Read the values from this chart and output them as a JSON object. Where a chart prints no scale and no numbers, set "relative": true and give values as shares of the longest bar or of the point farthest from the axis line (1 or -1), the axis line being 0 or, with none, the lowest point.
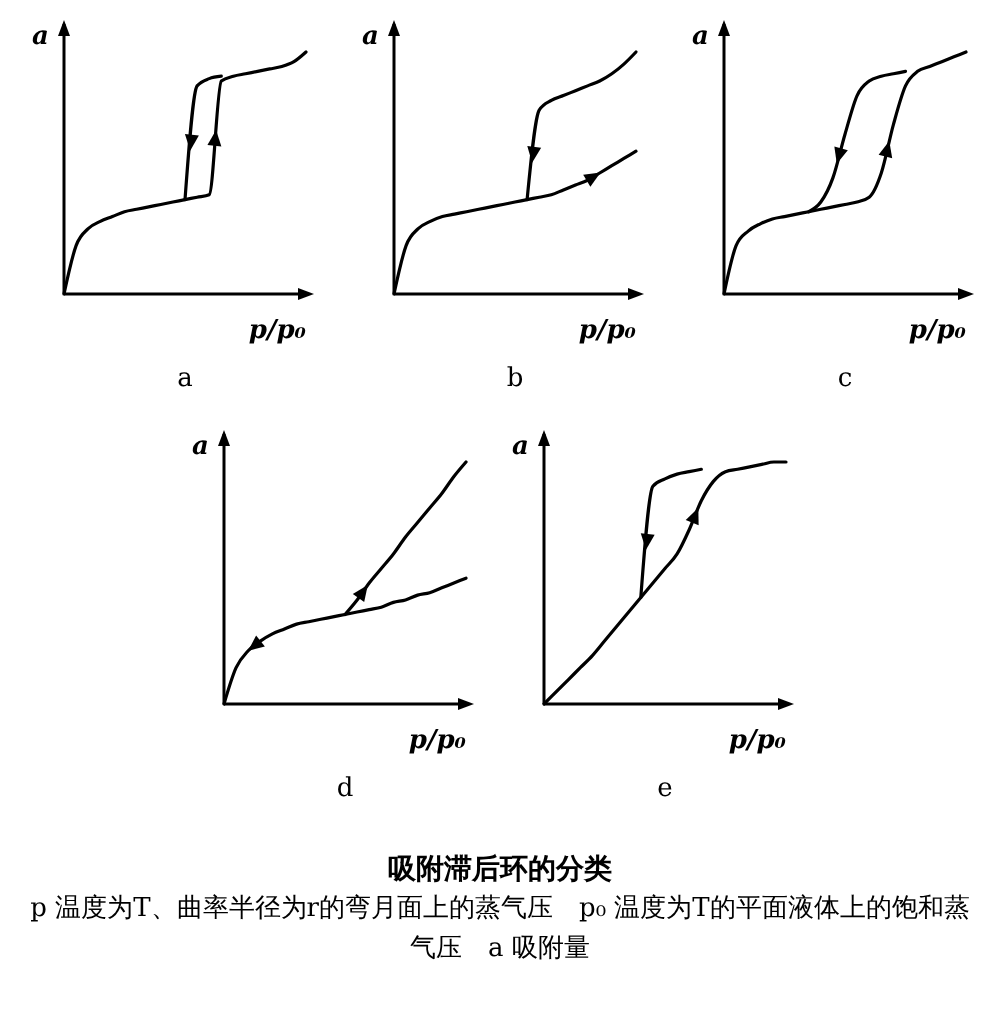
{
  "chart_data": [
    {
      "type": "line",
      "title": "a",
      "xlabel": "p/p₀",
      "ylabel": "a",
      "relative": true,
      "categories": [
        null,
        null,
        null,
        null,
        null,
        null,
        null,
        null,
        null,
        null,
        null,
        null,
        null,
        null,
        null,
        null,
        null,
        null,
        null,
        null,
        null
      ],
      "series": [
        {
          "color": "#000000",
          "values": [
            0,
            0.2,
            0.27,
            0.3,
            0.32,
            0.34,
            0.35,
            0.36,
            0.37,
            0.38,
            0.39,
            0.4,
            0.41,
            0.88,
            0.9,
            0.91,
            0.92,
            0.93,
            0.94,
            0.96,
            1
          ]
        },
        {
          "color": "#000000",
          "values": [
            null,
            null,
            null,
            null,
            null,
            null,
            null,
            null,
            null,
            null,
            0.39,
            0.86,
            0.89,
            0.9,
            null,
            null,
            null,
            null,
            null,
            null,
            null
          ]
        }
      ]
    },
    {
      "type": "line",
      "title": "b",
      "xlabel": "p/p₀",
      "ylabel": "a",
      "relative": true,
      "categories": [
        null,
        null,
        null,
        null,
        null,
        null,
        null,
        null,
        null,
        null,
        null,
        null,
        null,
        null,
        null,
        null,
        null,
        null,
        null,
        null,
        null
      ],
      "series": [
        {
          "color": "#000000",
          "values": [
            0,
            0.2,
            0.27,
            0.3,
            0.32,
            0.33,
            0.34,
            0.35,
            0.36,
            0.37,
            0.38,
            0.39,
            0.4,
            0.41,
            0.43,
            0.45,
            0.47,
            0.5,
            0.53,
            0.56,
            0.59
          ]
        },
        {
          "color": "#000000",
          "values": [
            null,
            null,
            null,
            null,
            null,
            null,
            null,
            null,
            null,
            null,
            null,
            0.39,
            0.76,
            0.8,
            0.82,
            0.84,
            0.86,
            0.88,
            0.91,
            0.95,
            1
          ]
        }
      ]
    },
    {
      "type": "line",
      "title": "c",
      "xlabel": "p/p₀",
      "ylabel": "a",
      "relative": true,
      "categories": [
        null,
        null,
        null,
        null,
        null,
        null,
        null,
        null,
        null,
        null,
        null,
        null,
        null,
        null,
        null,
        null,
        null,
        null,
        null,
        null,
        null
      ],
      "series": [
        {
          "color": "#000000",
          "values": [
            0,
            0.2,
            0.26,
            0.29,
            0.31,
            0.32,
            0.33,
            0.34,
            0.35,
            0.36,
            0.37,
            0.38,
            0.4,
            0.5,
            0.7,
            0.86,
            0.92,
            0.94,
            0.96,
            0.98,
            1
          ]
        },
        {
          "color": "#000000",
          "values": [
            null,
            null,
            null,
            null,
            null,
            null,
            null,
            0.34,
            0.38,
            0.48,
            0.66,
            0.82,
            0.88,
            0.9,
            0.91,
            0.92,
            null,
            null,
            null,
            null,
            null
          ]
        }
      ]
    },
    {
      "type": "line",
      "title": "d",
      "xlabel": "p/p₀",
      "ylabel": "a",
      "relative": true,
      "categories": [
        null,
        null,
        null,
        null,
        null,
        null,
        null,
        null,
        null,
        null,
        null,
        null,
        null,
        null,
        null,
        null,
        null,
        null,
        null,
        null,
        null
      ],
      "series": [
        {
          "color": "#000000",
          "values": [
            null,
            null,
            null,
            null,
            null,
            null,
            null,
            null,
            null,
            null,
            0.37,
            0.43,
            0.5,
            0.56,
            0.62,
            0.69,
            0.75,
            0.81,
            0.87,
            0.94,
            1
          ]
        },
        {
          "color": "#000000",
          "values": [
            0,
            0.15,
            0.22,
            0.26,
            0.29,
            0.31,
            0.33,
            0.34,
            0.35,
            0.36,
            0.37,
            0.38,
            0.39,
            0.4,
            0.42,
            0.43,
            0.45,
            0.46,
            0.48,
            0.5,
            0.52
          ]
        }
      ]
    },
    {
      "type": "line",
      "title": "e",
      "xlabel": "p/p₀",
      "ylabel": "a",
      "relative": true,
      "categories": [
        null,
        null,
        null,
        null,
        null,
        null,
        null,
        null,
        null,
        null,
        null,
        null,
        null,
        null,
        null,
        null,
        null,
        null,
        null,
        null,
        null
      ],
      "series": [
        {
          "color": "#000000",
          "values": [
            0,
            0.05,
            0.1,
            0.15,
            0.2,
            0.26,
            0.32,
            0.38,
            0.44,
            0.5,
            0.56,
            0.62,
            0.72,
            0.84,
            0.92,
            0.96,
            0.97,
            0.98,
            0.99,
            1,
            1
          ]
        },
        {
          "color": "#000000",
          "values": [
            null,
            null,
            null,
            null,
            null,
            null,
            null,
            null,
            0.44,
            0.9,
            0.93,
            0.95,
            0.96,
            0.97,
            null,
            null,
            null,
            null,
            null,
            null,
            null
          ]
        }
      ]
    },
    {
      "type": "other",
      "title": "吸附滞后环的分类",
      "annotations": [
        "p 温度为T、曲率半径为r的弯月面上的蒸气压　p₀ 温度为T的平面液体上的饱和蒸气压　a 吸附量"
      ]
    }
  ]
}
